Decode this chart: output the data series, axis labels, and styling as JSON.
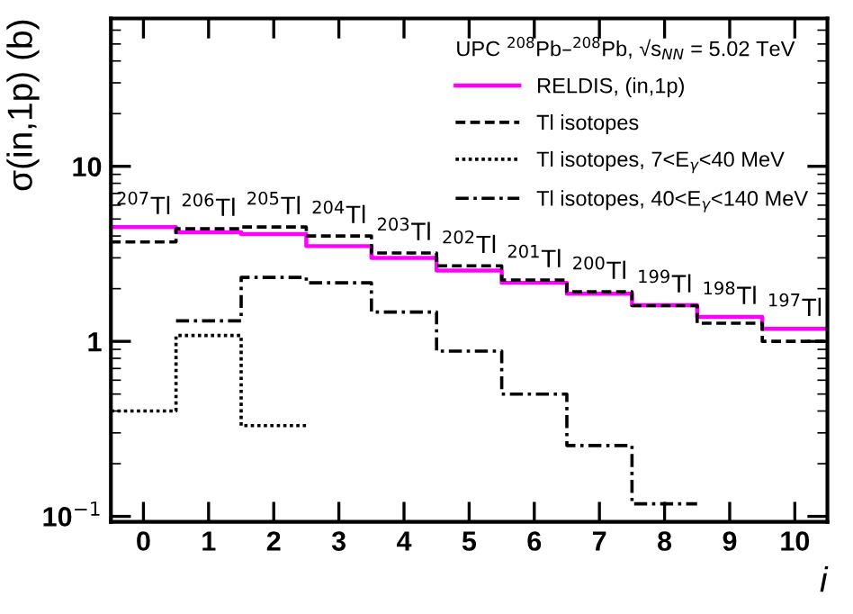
{
  "chart_data": {
    "type": "step",
    "xlabel": "i",
    "ylabel": "σ(in,1p) (b)",
    "legend_title": "UPC $^{208}$Pb–$^{208}$Pb, √s$_{NN}$ = 5.02 TeV",
    "series": [
      {
        "name": "RELDIS, (in,1p)",
        "color": "#ff00ff",
        "line_style": "solid",
        "x": [
          -0.5,
          0,
          1,
          2,
          3,
          4,
          5,
          6,
          7,
          8,
          9,
          10,
          10.5
        ],
        "values": [
          4.5,
          4.5,
          4.2,
          4.1,
          3.5,
          3.0,
          2.54,
          2.16,
          1.87,
          1.61,
          1.38,
          1.18,
          1.18
        ]
      },
      {
        "name": "Tl isotopes",
        "color": "#000000",
        "line_style": "dashed",
        "x": [
          -0.5,
          0,
          1,
          2,
          3,
          4,
          5,
          6,
          7,
          8,
          9,
          10,
          10.5
        ],
        "values": [
          3.7,
          3.7,
          4.4,
          4.5,
          4.0,
          3.2,
          2.7,
          2.24,
          1.92,
          1.6,
          1.27,
          1.0,
          1.0
        ]
      },
      {
        "name": "Tl isotopes, 7<E$_{γ}$<40 MeV",
        "color": "#000000",
        "line_style": "dotted",
        "x": [
          -0.5,
          0,
          1,
          2,
          2.5
        ],
        "values": [
          0.4,
          0.4,
          1.08,
          0.33,
          0.33
        ]
      },
      {
        "name": "Tl isotopes, 40<E$_{γ}$<140 MeV",
        "color": "#000000",
        "line_style": "dashdot",
        "x": [
          0.5,
          1,
          2,
          3,
          4,
          5,
          6,
          7,
          8,
          8.5
        ],
        "values": [
          1.31,
          1.31,
          2.32,
          2.16,
          1.47,
          0.88,
          0.5,
          0.254,
          0.118,
          0.118
        ]
      }
    ],
    "annotations": [
      {
        "text": "$^{207}$Tl",
        "x": 0,
        "y": 4.5
      },
      {
        "text": "$^{206}$Tl",
        "x": 1,
        "y": 4.4
      },
      {
        "text": "$^{205}$Tl",
        "x": 2,
        "y": 4.5
      },
      {
        "text": "$^{204}$Tl",
        "x": 3,
        "y": 4.0
      },
      {
        "text": "$^{203}$Tl",
        "x": 4,
        "y": 3.2
      },
      {
        "text": "$^{202}$Tl",
        "x": 5,
        "y": 2.7
      },
      {
        "text": "$^{201}$Tl",
        "x": 6,
        "y": 2.24
      },
      {
        "text": "$^{200}$Tl",
        "x": 7,
        "y": 1.92
      },
      {
        "text": "$^{199}$Tl",
        "x": 8,
        "y": 1.61
      },
      {
        "text": "$^{198}$Tl",
        "x": 9,
        "y": 1.38
      },
      {
        "text": "$^{197}$Tl",
        "x": 10,
        "y": 1.18
      }
    ],
    "xlim": [
      -0.5,
      10.5
    ],
    "xticks": [
      0,
      1,
      2,
      3,
      4,
      5,
      6,
      7,
      8,
      9,
      10
    ],
    "log": "y",
    "ylim": [
      0.093,
      70
    ],
    "yticks": [
      {
        "value": 0.1,
        "label": "10$^{−1}$"
      },
      1,
      10
    ],
    "legend": "top right",
    "grid": false
  }
}
